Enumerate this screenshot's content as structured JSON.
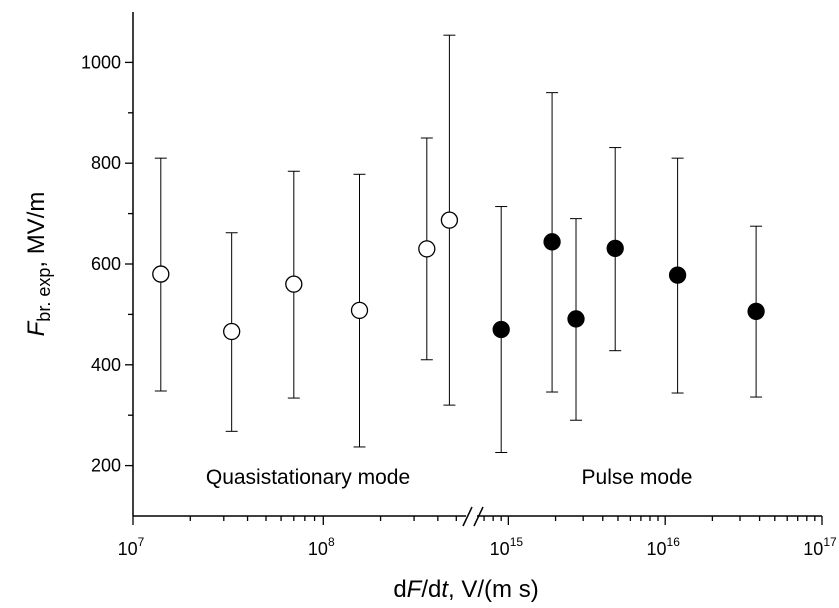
{
  "chart_data": {
    "type": "scatter",
    "title": "",
    "xlabel": {
      "prefix": "d",
      "italic1": "F",
      "mid": "/d",
      "italic2": "t",
      "suffix": ",  V/(m s)"
    },
    "ylabel": {
      "italic": "F",
      "subscript": "br. exp",
      "suffix": ", MV/m"
    },
    "x_scale": "log (broken axis)",
    "x_segments": [
      {
        "xlim_exp": [
          7,
          8.75
        ],
        "tick_exps": [
          7,
          8
        ],
        "tick_labels": [
          {
            "base": "10",
            "exp": "7"
          },
          {
            "base": "10",
            "exp": "8"
          }
        ]
      },
      {
        "xlim_exp": [
          14.8,
          17
        ],
        "tick_exps": [
          15,
          16,
          17
        ],
        "tick_labels": [
          {
            "base": "10",
            "exp": "15"
          },
          {
            "base": "10",
            "exp": "16"
          },
          {
            "base": "10",
            "exp": "17"
          }
        ]
      }
    ],
    "ylim": [
      100,
      1100
    ],
    "y_ticks": [
      200,
      400,
      600,
      800,
      1000
    ],
    "y_tick_labels": [
      "200",
      "400",
      "600",
      "800",
      "1000"
    ],
    "grid": false,
    "annotations": [
      "Quasistationary mode",
      "Pulse mode"
    ],
    "series": [
      {
        "marker": "open-circle",
        "segment": 0,
        "points": [
          {
            "x": 14000000.0,
            "y": 580,
            "err_low": 348,
            "err_high": 810
          },
          {
            "x": 33000000.0,
            "y": 466,
            "err_low": 268,
            "err_high": 662
          },
          {
            "x": 70000000.0,
            "y": 560,
            "err_low": 334,
            "err_high": 784
          },
          {
            "x": 155000000.0,
            "y": 508,
            "err_low": 237,
            "err_high": 778
          },
          {
            "x": 350000000.0,
            "y": 630,
            "err_low": 410,
            "err_high": 850
          },
          {
            "x": 460000000.0,
            "y": 687,
            "err_low": 320,
            "err_high": 1054
          }
        ]
      },
      {
        "marker": "filled-circle",
        "segment": 1,
        "points": [
          {
            "x": 900000000000000.0,
            "y": 470,
            "err_low": 226,
            "err_high": 714
          },
          {
            "x": 1900000000000000.0,
            "y": 644,
            "err_low": 346,
            "err_high": 940
          },
          {
            "x": 2700000000000000.0,
            "y": 491,
            "err_low": 290,
            "err_high": 690
          },
          {
            "x": 4800000000000000.0,
            "y": 631,
            "err_low": 428,
            "err_high": 831
          },
          {
            "x": 1.2e+16,
            "y": 578,
            "err_low": 344,
            "err_high": 810
          },
          {
            "x": 3.8e+16,
            "y": 506,
            "err_low": 336,
            "err_high": 675
          }
        ]
      }
    ]
  }
}
